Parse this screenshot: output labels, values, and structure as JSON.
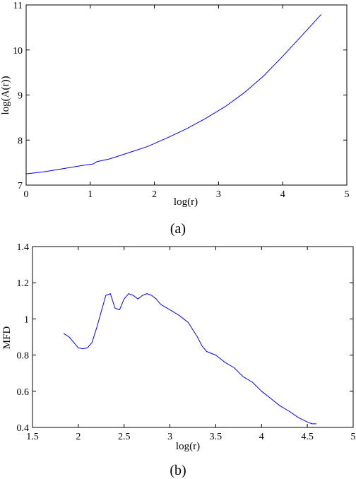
{
  "chart_data": [
    {
      "type": "line",
      "caption": "(a)",
      "xlabel": "log(r)",
      "ylabel": "log(A(r))",
      "xlim": [
        0,
        5
      ],
      "ylim": [
        7,
        11
      ],
      "xticks": [
        0,
        1,
        2,
        3,
        4,
        5
      ],
      "yticks": [
        7,
        8,
        9,
        10,
        11
      ],
      "grid": false,
      "line_color": "#0000ff",
      "series": [
        {
          "x": [
            0,
            0.3,
            0.6,
            0.9,
            1.05,
            1.1,
            1.3,
            1.6,
            1.9,
            2.2,
            2.5,
            2.8,
            3.1,
            3.4,
            3.7,
            4.0,
            4.3,
            4.6
          ],
          "y": [
            7.25,
            7.3,
            7.37,
            7.44,
            7.47,
            7.52,
            7.58,
            7.72,
            7.86,
            8.05,
            8.25,
            8.48,
            8.74,
            9.05,
            9.42,
            9.86,
            10.32,
            10.79
          ]
        }
      ]
    },
    {
      "type": "line",
      "caption": "(b)",
      "xlabel": "log(r)",
      "ylabel": "MFD",
      "xlim": [
        1.5,
        5
      ],
      "ylim": [
        0.4,
        1.4
      ],
      "xticks": [
        1.5,
        2,
        2.5,
        3,
        3.5,
        4,
        4.5,
        5
      ],
      "yticks": [
        0.4,
        0.6,
        0.8,
        1,
        1.2,
        1.4
      ],
      "grid": false,
      "line_color": "#0000ff",
      "series": [
        {
          "x": [
            1.84,
            1.9,
            1.95,
            2.0,
            2.05,
            2.1,
            2.15,
            2.2,
            2.25,
            2.3,
            2.35,
            2.4,
            2.45,
            2.5,
            2.55,
            2.6,
            2.65,
            2.7,
            2.75,
            2.8,
            2.85,
            2.9,
            3.0,
            3.1,
            3.2,
            3.3,
            3.35,
            3.4,
            3.5,
            3.6,
            3.7,
            3.8,
            3.9,
            4.0,
            4.1,
            4.2,
            4.3,
            4.4,
            4.5,
            4.55,
            4.6
          ],
          "y": [
            0.92,
            0.9,
            0.87,
            0.84,
            0.835,
            0.84,
            0.87,
            0.95,
            1.04,
            1.13,
            1.14,
            1.06,
            1.05,
            1.11,
            1.14,
            1.13,
            1.11,
            1.13,
            1.14,
            1.13,
            1.11,
            1.08,
            1.05,
            1.02,
            0.98,
            0.9,
            0.85,
            0.82,
            0.8,
            0.76,
            0.73,
            0.68,
            0.65,
            0.6,
            0.56,
            0.52,
            0.49,
            0.455,
            0.43,
            0.42,
            0.42
          ]
        }
      ]
    }
  ]
}
